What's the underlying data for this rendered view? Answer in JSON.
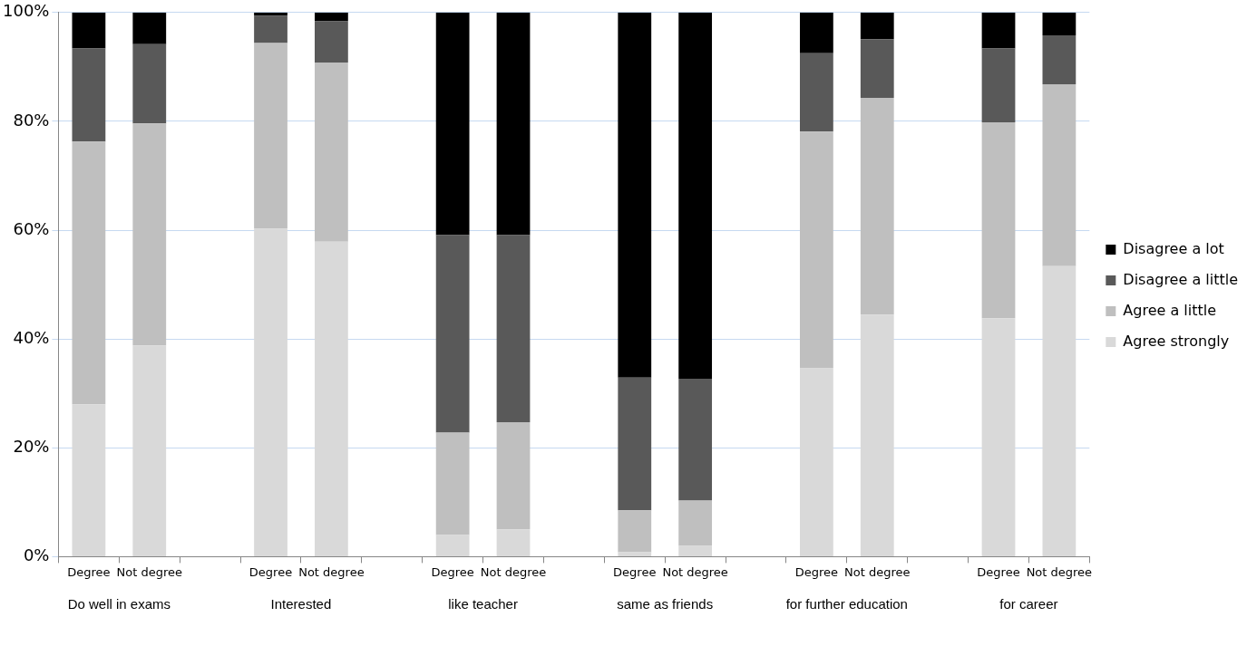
{
  "chart_data": {
    "type": "bar",
    "stacked": true,
    "categories": [
      "Degree",
      "Not degree",
      null,
      "Degree",
      "Not degree",
      null,
      "Degree",
      "Not degree",
      null,
      "Degree",
      "Not degree",
      null,
      "Degree",
      "Not degree",
      null,
      "Degree",
      "Not degree"
    ],
    "series": [
      {
        "name": "Agree strongly",
        "color": "#d9d9d9",
        "values": [
          28.0,
          38.8,
          null,
          60.3,
          57.9,
          null,
          4.0,
          5.0,
          null,
          0.8,
          2.0,
          null,
          34.6,
          44.5,
          null,
          43.8,
          53.4
        ]
      },
      {
        "name": "Agree a little",
        "color": "#bfbfbf",
        "values": [
          48.3,
          40.8,
          null,
          34.1,
          32.9,
          null,
          18.8,
          19.7,
          null,
          7.7,
          8.3,
          null,
          43.5,
          39.8,
          null,
          36.0,
          33.4
        ]
      },
      {
        "name": "Disagree a little",
        "color": "#595959",
        "values": [
          17.1,
          14.6,
          null,
          5.0,
          7.6,
          null,
          36.3,
          34.4,
          null,
          24.4,
          22.4,
          null,
          14.4,
          10.8,
          null,
          13.6,
          9.0
        ]
      },
      {
        "name": "Disagree a lot",
        "color": "#000000",
        "values": [
          6.6,
          5.8,
          null,
          0.6,
          1.6,
          null,
          40.9,
          40.9,
          null,
          67.1,
          67.3,
          null,
          7.5,
          4.9,
          null,
          6.6,
          4.2
        ]
      }
    ],
    "ylim": [
      0,
      100
    ],
    "yticks": [
      {
        "value": 0,
        "label": "0%"
      },
      {
        "value": 20,
        "label": "20%"
      },
      {
        "value": 40,
        "label": "40%"
      },
      {
        "value": 60,
        "label": "60%"
      },
      {
        "value": 80,
        "label": "80%"
      },
      {
        "value": 100,
        "label": "100%"
      }
    ],
    "grid": "y",
    "legend": "right",
    "annotations": [
      "Do well in exams",
      "Interested",
      "like teacher",
      "same as friends",
      "for further education",
      "for career"
    ]
  }
}
